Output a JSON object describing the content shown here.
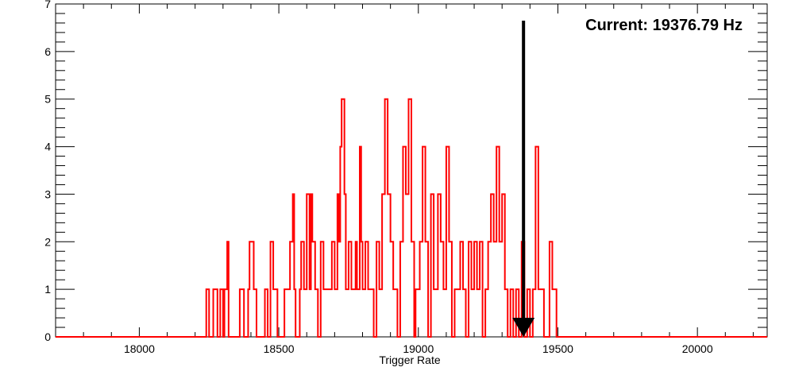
{
  "chart_data": {
    "type": "histogram",
    "title": "",
    "xlabel": "Trigger Rate",
    "ylabel": "",
    "xlim": [
      17700,
      20250
    ],
    "ylim": [
      0,
      7
    ],
    "x_ticks": [
      18000,
      18500,
      19000,
      19500,
      20000
    ],
    "y_ticks": [
      0,
      1,
      2,
      3,
      4,
      5,
      6,
      7
    ],
    "grid": false,
    "legend": "none",
    "colors": {
      "series": "#ff0000",
      "arrow": "#000000",
      "axes": "#000000"
    },
    "series": [
      {
        "points": [
          [
            17700,
            0
          ],
          [
            18240,
            1
          ],
          [
            18250,
            0
          ],
          [
            18265,
            1
          ],
          [
            18280,
            0
          ],
          [
            18290,
            1
          ],
          [
            18300,
            0
          ],
          [
            18305,
            1
          ],
          [
            18315,
            2
          ],
          [
            18320,
            0
          ],
          [
            18360,
            1
          ],
          [
            18375,
            0
          ],
          [
            18390,
            1
          ],
          [
            18395,
            2
          ],
          [
            18410,
            1
          ],
          [
            18420,
            0
          ],
          [
            18450,
            1
          ],
          [
            18460,
            0
          ],
          [
            18470,
            2
          ],
          [
            18480,
            1
          ],
          [
            18495,
            0
          ],
          [
            18520,
            1
          ],
          [
            18540,
            2
          ],
          [
            18550,
            3
          ],
          [
            18555,
            1
          ],
          [
            18560,
            0
          ],
          [
            18575,
            1
          ],
          [
            18580,
            2
          ],
          [
            18590,
            1
          ],
          [
            18600,
            3
          ],
          [
            18610,
            1
          ],
          [
            18615,
            3
          ],
          [
            18620,
            2
          ],
          [
            18630,
            1
          ],
          [
            18640,
            0
          ],
          [
            18650,
            2
          ],
          [
            18660,
            1
          ],
          [
            18690,
            2
          ],
          [
            18700,
            1
          ],
          [
            18710,
            3
          ],
          [
            18715,
            2
          ],
          [
            18720,
            4
          ],
          [
            18725,
            5
          ],
          [
            18735,
            3
          ],
          [
            18740,
            1
          ],
          [
            18750,
            2
          ],
          [
            18760,
            1
          ],
          [
            18775,
            2
          ],
          [
            18780,
            1
          ],
          [
            18790,
            4
          ],
          [
            18795,
            2
          ],
          [
            18800,
            1
          ],
          [
            18810,
            2
          ],
          [
            18820,
            1
          ],
          [
            18840,
            0
          ],
          [
            18850,
            2
          ],
          [
            18860,
            1
          ],
          [
            18870,
            3
          ],
          [
            18880,
            5
          ],
          [
            18890,
            3
          ],
          [
            18900,
            2
          ],
          [
            18910,
            1
          ],
          [
            18925,
            0
          ],
          [
            18935,
            2
          ],
          [
            18945,
            4
          ],
          [
            18955,
            3
          ],
          [
            18965,
            5
          ],
          [
            18975,
            2
          ],
          [
            18985,
            0
          ],
          [
            18990,
            1
          ],
          [
            19005,
            2
          ],
          [
            19015,
            4
          ],
          [
            19025,
            2
          ],
          [
            19035,
            0
          ],
          [
            19045,
            3
          ],
          [
            19055,
            1
          ],
          [
            19070,
            3
          ],
          [
            19080,
            2
          ],
          [
            19090,
            1
          ],
          [
            19100,
            4
          ],
          [
            19110,
            2
          ],
          [
            19120,
            0
          ],
          [
            19130,
            1
          ],
          [
            19150,
            2
          ],
          [
            19160,
            1
          ],
          [
            19170,
            0
          ],
          [
            19180,
            2
          ],
          [
            19190,
            1
          ],
          [
            19200,
            2
          ],
          [
            19210,
            1
          ],
          [
            19220,
            2
          ],
          [
            19230,
            0
          ],
          [
            19240,
            1
          ],
          [
            19250,
            2
          ],
          [
            19260,
            3
          ],
          [
            19270,
            2
          ],
          [
            19280,
            4
          ],
          [
            19290,
            2
          ],
          [
            19300,
            3
          ],
          [
            19310,
            1
          ],
          [
            19320,
            0
          ],
          [
            19330,
            1
          ],
          [
            19340,
            0
          ],
          [
            19350,
            1
          ],
          [
            19360,
            0
          ],
          [
            19370,
            2
          ],
          [
            19380,
            0
          ],
          [
            19390,
            1
          ],
          [
            19400,
            0
          ],
          [
            19410,
            1
          ],
          [
            19420,
            4
          ],
          [
            19430,
            1
          ],
          [
            19450,
            0
          ],
          [
            19470,
            2
          ],
          [
            19480,
            1
          ],
          [
            19495,
            0
          ],
          [
            20250,
            0
          ]
        ]
      }
    ],
    "annotations": [
      {
        "text": "Current: 19376.79 Hz",
        "position": "top-right"
      }
    ],
    "marker": {
      "x": 19376.79,
      "from_y": 6.65,
      "to_y": 0,
      "shape": "down-arrow"
    }
  }
}
